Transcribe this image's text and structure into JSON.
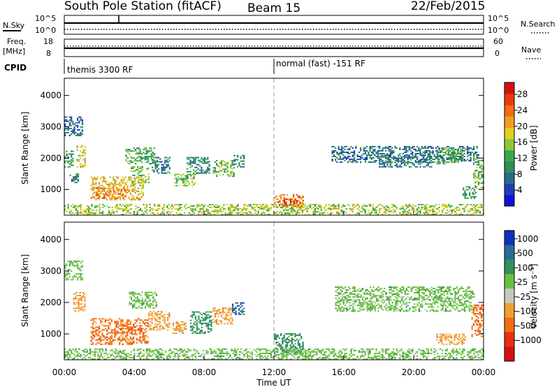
{
  "header": {
    "station": "South Pole Station (fitACF)",
    "beam": "Beam 15",
    "date": "22/Feb/2015"
  },
  "top_panels": {
    "nsky_label": "N.Sky",
    "nsky_ticks": [
      "10^5",
      "10^0"
    ],
    "nsearch_label": "N.Search",
    "nsearch_ticks": [
      "10^5",
      "10^0"
    ],
    "freq_label": "Freq.",
    "freq_unit": "[MHz]",
    "freq_ticks": [
      "18",
      "8"
    ],
    "nave_label": "Nave",
    "nave_ticks": [
      "60",
      "0"
    ],
    "cpid_label": "CPID",
    "cpid_segments": [
      {
        "start_hour": 0,
        "text": "themis 3300 RF"
      },
      {
        "start_hour": 12,
        "text": "normal (fast) -151 RF"
      }
    ]
  },
  "chart_data": [
    {
      "type": "heatmap",
      "panel": "power",
      "ylabel": "Slant Range [km]",
      "yticks": [
        "1000",
        "2000",
        "3000",
        "4000"
      ],
      "ylim": [
        180,
        4550
      ],
      "xlim": [
        0,
        24
      ],
      "colorbar": {
        "label": "Power [dB]",
        "ticks": [
          "4",
          "8",
          "12",
          "16",
          "20",
          "24",
          "28"
        ],
        "range": [
          0,
          31
        ],
        "colors": [
          "#1010e0",
          "#1f3db8",
          "#2a6a8a",
          "#2f8f5a",
          "#3aa84a",
          "#8cc83a",
          "#e0d020",
          "#f0a020",
          "#f07010",
          "#e83a10",
          "#d81010"
        ]
      },
      "regions": [
        {
          "t0": 0.0,
          "t1": 1.0,
          "r0": 2700,
          "r1": 3300,
          "value": 6
        },
        {
          "t0": 0.0,
          "t1": 0.5,
          "r0": 1700,
          "r1": 2200,
          "value": 10
        },
        {
          "t0": 0.7,
          "t1": 1.2,
          "r0": 1700,
          "r1": 2400,
          "value": 18
        },
        {
          "t0": 0.3,
          "t1": 0.8,
          "r0": 1200,
          "r1": 1500,
          "value": 9
        },
        {
          "t0": 1.5,
          "t1": 4.5,
          "r0": 650,
          "r1": 1400,
          "value": 20
        },
        {
          "t0": 1.8,
          "t1": 3.5,
          "r0": 700,
          "r1": 1050,
          "value": 24
        },
        {
          "t0": 3.8,
          "t1": 4.8,
          "r0": 1200,
          "r1": 1700,
          "value": 14
        },
        {
          "t0": 3.5,
          "t1": 5.2,
          "r0": 1800,
          "r1": 2300,
          "value": 12
        },
        {
          "t0": 5.0,
          "t1": 6.0,
          "r0": 1500,
          "r1": 2000,
          "value": 8
        },
        {
          "t0": 6.3,
          "t1": 7.5,
          "r0": 1100,
          "r1": 1500,
          "value": 14
        },
        {
          "t0": 7.0,
          "t1": 8.3,
          "r0": 1500,
          "r1": 2000,
          "value": 9
        },
        {
          "t0": 8.5,
          "t1": 9.7,
          "r0": 1400,
          "r1": 1900,
          "value": 14
        },
        {
          "t0": 9.7,
          "t1": 10.3,
          "r0": 1700,
          "r1": 2100,
          "value": 8
        },
        {
          "t0": 12.0,
          "t1": 13.7,
          "r0": 400,
          "r1": 850,
          "value": 23
        },
        {
          "t0": 12.2,
          "t1": 13.5,
          "r0": 480,
          "r1": 680,
          "value": 28
        },
        {
          "t0": 15.3,
          "t1": 23.7,
          "r0": 1850,
          "r1": 2350,
          "value": 7
        },
        {
          "t0": 18.0,
          "t1": 21.0,
          "r0": 1700,
          "r1": 2100,
          "value": 8
        },
        {
          "t0": 21.3,
          "t1": 22.8,
          "r0": 1800,
          "r1": 2300,
          "value": 12
        },
        {
          "t0": 23.4,
          "t1": 24.0,
          "r0": 1000,
          "r1": 2000,
          "value": 14
        },
        {
          "t0": 22.8,
          "t1": 23.6,
          "r0": 700,
          "r1": 1100,
          "value": 10
        },
        {
          "t0": 0.0,
          "t1": 24.0,
          "r0": 180,
          "r1": 500,
          "value": 16
        }
      ]
    },
    {
      "type": "heatmap",
      "panel": "velocity",
      "ylabel": "Slant Range [km]",
      "yticks": [
        "1000",
        "2000",
        "3000",
        "4000"
      ],
      "ylim": [
        180,
        4550
      ],
      "xlim": [
        0,
        24
      ],
      "xticks": [
        "00:00",
        "04:00",
        "08:00",
        "12:00",
        "16:00",
        "20:00",
        "00:00"
      ],
      "xlabel": "Time UT",
      "colorbar": {
        "label": "Velocity [m s⁻¹]",
        "ticks": [
          "1000",
          "500",
          "100",
          "25",
          "-25",
          "-100",
          "-500",
          "-1000"
        ],
        "colors": [
          "#1030c0",
          "#2a6a9a",
          "#2f9060",
          "#6cc040",
          "#c8c8c0",
          "#f0a030",
          "#f07010",
          "#e83010",
          "#d81010"
        ]
      },
      "regions": [
        {
          "t0": 0.0,
          "t1": 1.0,
          "r0": 2700,
          "r1": 3300,
          "value": "25"
        },
        {
          "t0": 0.5,
          "t1": 1.2,
          "r0": 1700,
          "r1": 2300,
          "value": "-100"
        },
        {
          "t0": 1.5,
          "t1": 4.8,
          "r0": 650,
          "r1": 1500,
          "value": "-500"
        },
        {
          "t0": 4.8,
          "t1": 6.0,
          "r0": 1100,
          "r1": 1700,
          "value": "-100"
        },
        {
          "t0": 3.7,
          "t1": 5.3,
          "r0": 1800,
          "r1": 2300,
          "value": "25"
        },
        {
          "t0": 6.2,
          "t1": 7.0,
          "r0": 1000,
          "r1": 1400,
          "value": "-100"
        },
        {
          "t0": 7.2,
          "t1": 8.4,
          "r0": 1000,
          "r1": 1700,
          "value": "100"
        },
        {
          "t0": 8.5,
          "t1": 9.6,
          "r0": 1300,
          "r1": 1800,
          "value": "-100"
        },
        {
          "t0": 9.6,
          "t1": 10.3,
          "r0": 1600,
          "r1": 2000,
          "value": "500"
        },
        {
          "t0": 12.0,
          "t1": 13.7,
          "r0": 350,
          "r1": 1000,
          "value": "100"
        },
        {
          "t0": 15.5,
          "t1": 23.5,
          "r0": 1700,
          "r1": 2500,
          "value": "25"
        },
        {
          "t0": 21.3,
          "t1": 23.0,
          "r0": 650,
          "r1": 1000,
          "value": "-100"
        },
        {
          "t0": 23.3,
          "t1": 24.0,
          "r0": 900,
          "r1": 1900,
          "value": "-500"
        },
        {
          "t0": 0.0,
          "t1": 24.0,
          "r0": 180,
          "r1": 500,
          "value": "25"
        }
      ]
    }
  ]
}
